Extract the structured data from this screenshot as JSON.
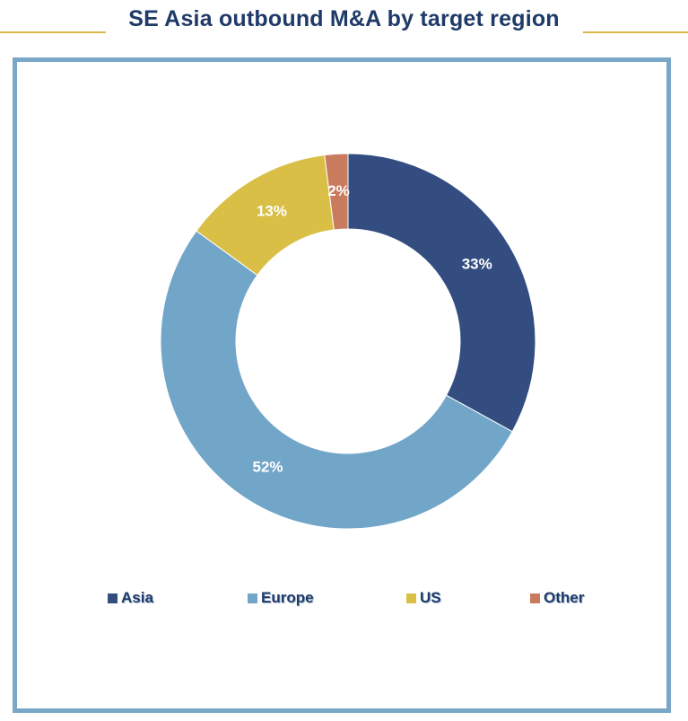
{
  "chart_data": {
    "type": "pie",
    "variant": "donut",
    "title": "SE Asia outbound M&A by target region",
    "categories": [
      "Asia",
      "Europe",
      "US",
      "Other"
    ],
    "values": [
      33,
      52,
      13,
      2
    ],
    "value_labels": [
      "33%",
      "52%",
      "13%",
      "2%"
    ],
    "colors": [
      "#334d80",
      "#72a6c8",
      "#d9bf45",
      "#c97b5e"
    ],
    "legend": "bottom"
  }
}
